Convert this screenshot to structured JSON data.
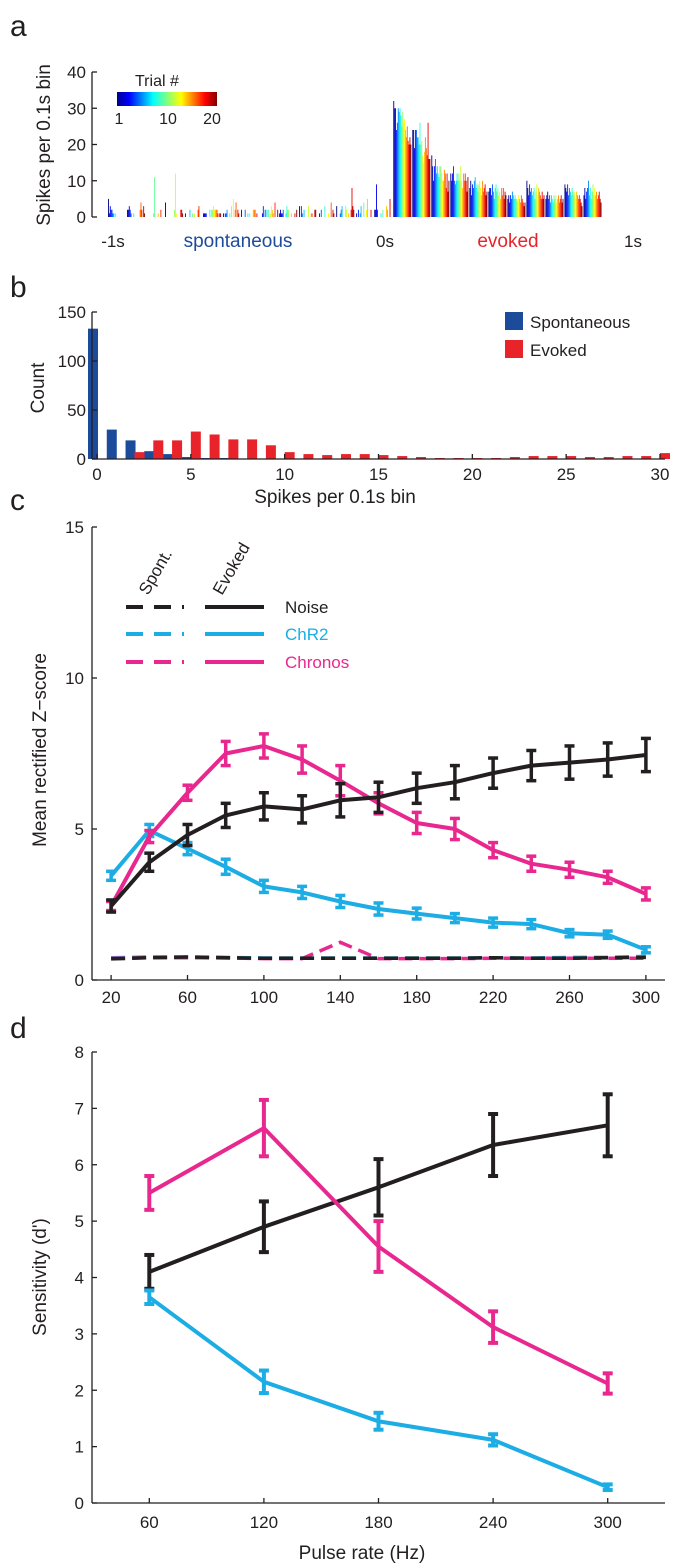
{
  "colors": {
    "spont": "#1c4b9c",
    "evoked": "#e8232a",
    "noise": "#231f20",
    "chr2": "#1cade4",
    "chronos": "#e8288e"
  },
  "chart_data": [
    {
      "panel": "a",
      "type": "bar",
      "ylabel": "Spikes per 0.1s bin",
      "yticks": [
        0,
        10,
        20,
        30,
        40
      ],
      "ylim": [
        0,
        40
      ],
      "xticks": [
        "-1s",
        "0s",
        "1s"
      ],
      "annotations": {
        "spont_label": "spontaneous",
        "evoked_label": "evoked"
      },
      "colorbar": {
        "title": "Trial #",
        "ticks": [
          "1",
          "10",
          "20"
        ]
      },
      "bins": [
        [
          5,
          1,
          3,
          2,
          2,
          1,
          1,
          0,
          1,
          0,
          0,
          0,
          0,
          0,
          0,
          0,
          0,
          0,
          0,
          0
        ],
        [
          2,
          2,
          3,
          2,
          1,
          0,
          0,
          1,
          0,
          0,
          0,
          0,
          0,
          0,
          2,
          4,
          2,
          0,
          3,
          1
        ],
        [
          0,
          0,
          0,
          0,
          0,
          0,
          0,
          0,
          1,
          11,
          0,
          0,
          0,
          1,
          0,
          0,
          2,
          0,
          0,
          0
        ],
        [
          4,
          0,
          0,
          0,
          0,
          0,
          0,
          0,
          0,
          0,
          2,
          12,
          1,
          0,
          0,
          0,
          0,
          2,
          2,
          1
        ],
        [
          0,
          1,
          0,
          0,
          0,
          0,
          2,
          0,
          0,
          1,
          0,
          1,
          0,
          0,
          0,
          2,
          3,
          0,
          0,
          0
        ],
        [
          1,
          1,
          1,
          1,
          0,
          0,
          0,
          2,
          0,
          2,
          2,
          3,
          2,
          2,
          2,
          2,
          1,
          0,
          1,
          1
        ],
        [
          0,
          1,
          0,
          1,
          1,
          2,
          0,
          0,
          1,
          0,
          3,
          0,
          5,
          0,
          2,
          4,
          0,
          2,
          1,
          0
        ],
        [
          2,
          0,
          0,
          0,
          2,
          0,
          0,
          1,
          0,
          1,
          0,
          0,
          0,
          2,
          2,
          2,
          0,
          1,
          0,
          0
        ],
        [
          0,
          0,
          1,
          3,
          0,
          2,
          2,
          0,
          2,
          2,
          0,
          1,
          3,
          2,
          1,
          0,
          4,
          0,
          0,
          2
        ],
        [
          1,
          2,
          1,
          1,
          2,
          0,
          0,
          1,
          3,
          2,
          2,
          0,
          0,
          1,
          0,
          0,
          0,
          1,
          0,
          2
        ],
        [
          0,
          3,
          0,
          3,
          1,
          0,
          2,
          0,
          0,
          0,
          0,
          3,
          0,
          0,
          1,
          1,
          0,
          0,
          2,
          2
        ],
        [
          0,
          0,
          1,
          0,
          2,
          0,
          0,
          0,
          3,
          0,
          0,
          0,
          1,
          0,
          0,
          4,
          0,
          2,
          1,
          0
        ],
        [
          3,
          0,
          0,
          0,
          1,
          2,
          3,
          0,
          0,
          0,
          3,
          2,
          0,
          1,
          0,
          0,
          2,
          8,
          3,
          2
        ],
        [
          0,
          1,
          0,
          2,
          0,
          1,
          3,
          0,
          0,
          4,
          0,
          0,
          2,
          5,
          0,
          0,
          0,
          2,
          0,
          0
        ],
        [
          2,
          2,
          9,
          2,
          0,
          0,
          0,
          1,
          0,
          2,
          0,
          0,
          0,
          3,
          2,
          0,
          0,
          5,
          0,
          0
        ],
        [
          32,
          30,
          30,
          24,
          26,
          30,
          29,
          30,
          28,
          25,
          29,
          26,
          27,
          24,
          22,
          25,
          21,
          20,
          22,
          20
        ],
        [
          24,
          24,
          19,
          24,
          24,
          22,
          22,
          20,
          26,
          20,
          21,
          17,
          15,
          18,
          22,
          19,
          17,
          26,
          16,
          16
        ],
        [
          17,
          14,
          10,
          14,
          16,
          12,
          14,
          12,
          11,
          14,
          14,
          12,
          10,
          10,
          13,
          12,
          8,
          12,
          7,
          10
        ],
        [
          12,
          10,
          12,
          14,
          10,
          9,
          10,
          12,
          10,
          12,
          10,
          14,
          10,
          8,
          12,
          10,
          12,
          10,
          7,
          11
        ],
        [
          8,
          10,
          6,
          9,
          8,
          10,
          11,
          8,
          9,
          7,
          9,
          10,
          8,
          6,
          10,
          7,
          8,
          9,
          6,
          7
        ],
        [
          7,
          8,
          8,
          6,
          9,
          7,
          5,
          8,
          9,
          7,
          8,
          6,
          7,
          5,
          8,
          6,
          8,
          5,
          7,
          6
        ],
        [
          5,
          6,
          4,
          6,
          5,
          7,
          6,
          5,
          6,
          5,
          5,
          4,
          6,
          5,
          4,
          6,
          5,
          4,
          3,
          4
        ],
        [
          10,
          8,
          6,
          9,
          7,
          8,
          6,
          7,
          8,
          5,
          7,
          9,
          6,
          8,
          7,
          6,
          5,
          7,
          5,
          6
        ],
        [
          5,
          6,
          7,
          5,
          6,
          4,
          6,
          5,
          4,
          6,
          5,
          6,
          4,
          5,
          6,
          4,
          5,
          6,
          4,
          5
        ],
        [
          9,
          8,
          7,
          9,
          6,
          8,
          7,
          6,
          8,
          7,
          6,
          7,
          5,
          7,
          6,
          5,
          6,
          5,
          4,
          3
        ],
        [
          6,
          8,
          5,
          7,
          8,
          10,
          6,
          8,
          5,
          7,
          9,
          6,
          8,
          6,
          7,
          5,
          6,
          7,
          5,
          4
        ]
      ]
    },
    {
      "panel": "b",
      "type": "bar",
      "xlabel": "Spikes per 0.1s bin",
      "ylabel": "Count",
      "xlim": [
        0,
        30
      ],
      "ylim": [
        0,
        150
      ],
      "xticks": [
        0,
        5,
        10,
        15,
        20,
        25,
        30
      ],
      "yticks": [
        0,
        50,
        100,
        150
      ],
      "series": [
        {
          "name": "Spontaneous",
          "values": [
            133,
            30,
            19,
            8,
            5,
            2,
            1,
            1,
            0,
            0,
            0,
            0,
            0,
            0,
            0,
            0,
            0,
            0,
            0,
            0,
            0,
            0,
            0,
            0,
            0,
            0,
            0,
            0,
            0,
            0,
            0
          ]
        },
        {
          "name": "Evoked",
          "values": [
            0,
            0,
            7,
            19,
            19,
            28,
            25,
            20,
            20,
            14,
            7,
            5,
            4,
            5,
            5,
            4,
            3,
            2,
            1,
            1,
            1,
            1,
            2,
            3,
            3,
            3,
            2,
            2,
            3,
            3,
            6
          ]
        }
      ]
    },
    {
      "panel": "c",
      "type": "line",
      "ylabel": "Mean rectified Z−score",
      "xlim": [
        10,
        310
      ],
      "ylim": [
        0,
        15
      ],
      "xticks": [
        20,
        60,
        100,
        140,
        180,
        220,
        260,
        300
      ],
      "yticks": [
        0,
        5,
        10,
        15
      ],
      "legend": {
        "header_spont": "Spont.",
        "header_evoked": "Evoked"
      },
      "x": [
        20,
        40,
        60,
        80,
        100,
        120,
        140,
        160,
        180,
        200,
        220,
        240,
        260,
        280,
        300
      ],
      "series": [
        {
          "name": "Noise",
          "color": "#231f20",
          "evoked": [
            2.45,
            3.9,
            4.8,
            5.45,
            5.75,
            5.65,
            5.95,
            6.05,
            6.35,
            6.55,
            6.85,
            7.1,
            7.2,
            7.3,
            7.45
          ],
          "evoked_err": [
            0.2,
            0.3,
            0.35,
            0.4,
            0.45,
            0.45,
            0.55,
            0.5,
            0.5,
            0.55,
            0.5,
            0.5,
            0.55,
            0.55,
            0.55
          ],
          "spont": [
            0.7,
            0.74,
            0.76,
            0.74,
            0.72,
            0.72,
            0.72,
            0.72,
            0.72,
            0.72,
            0.74,
            0.72,
            0.72,
            0.74,
            0.75
          ]
        },
        {
          "name": "ChR2",
          "color": "#1cade4",
          "evoked": [
            3.45,
            4.95,
            4.35,
            3.75,
            3.1,
            2.9,
            2.6,
            2.35,
            2.2,
            2.05,
            1.9,
            1.85,
            1.55,
            1.5,
            1.0
          ],
          "evoked_err": [
            0.15,
            0.2,
            0.2,
            0.25,
            0.2,
            0.2,
            0.2,
            0.2,
            0.18,
            0.15,
            0.15,
            0.15,
            0.12,
            0.12,
            0.1
          ],
          "spont": [
            0.74,
            0.76,
            0.76,
            0.75,
            0.73,
            0.73,
            0.73,
            0.73,
            0.73,
            0.73,
            0.74,
            0.73,
            0.75,
            0.75,
            0.78
          ]
        },
        {
          "name": "Chronos",
          "color": "#e8288e",
          "evoked": [
            2.45,
            4.75,
            6.2,
            7.5,
            7.75,
            7.3,
            6.6,
            5.85,
            5.2,
            5.0,
            4.3,
            3.85,
            3.65,
            3.4,
            2.85
          ],
          "evoked_err": [
            0.15,
            0.2,
            0.25,
            0.4,
            0.4,
            0.45,
            0.5,
            0.35,
            0.35,
            0.35,
            0.25,
            0.25,
            0.25,
            0.2,
            0.2
          ],
          "spont": [
            0.72,
            0.74,
            0.74,
            0.73,
            0.71,
            0.71,
            1.25,
            0.71,
            0.71,
            0.71,
            0.72,
            0.72,
            0.72,
            0.72,
            0.72
          ]
        }
      ]
    },
    {
      "panel": "d",
      "type": "line",
      "xlabel": "Pulse rate (Hz)",
      "ylabel": "Sensitivity (d')",
      "xlim": [
        30,
        330
      ],
      "ylim": [
        0,
        8
      ],
      "xticks": [
        60,
        120,
        180,
        240,
        300
      ],
      "yticks": [
        0,
        1,
        2,
        3,
        4,
        5,
        6,
        7,
        8
      ],
      "x": [
        60,
        120,
        180,
        240,
        300
      ],
      "series": [
        {
          "name": "Noise",
          "color": "#231f20",
          "values": [
            4.1,
            4.9,
            5.6,
            6.35,
            6.7
          ],
          "err": [
            0.3,
            0.45,
            0.5,
            0.55,
            0.55
          ]
        },
        {
          "name": "ChR2",
          "color": "#1cade4",
          "values": [
            3.65,
            2.15,
            1.45,
            1.12,
            0.28
          ],
          "err": [
            0.12,
            0.2,
            0.15,
            0.1,
            0.05
          ]
        },
        {
          "name": "Chronos",
          "color": "#e8288e",
          "values": [
            5.5,
            6.65,
            4.55,
            3.12,
            2.12
          ],
          "err": [
            0.3,
            0.5,
            0.45,
            0.28,
            0.18
          ]
        }
      ]
    }
  ],
  "panels": {
    "a": "a",
    "b": "b",
    "c": "c",
    "d": "d"
  }
}
